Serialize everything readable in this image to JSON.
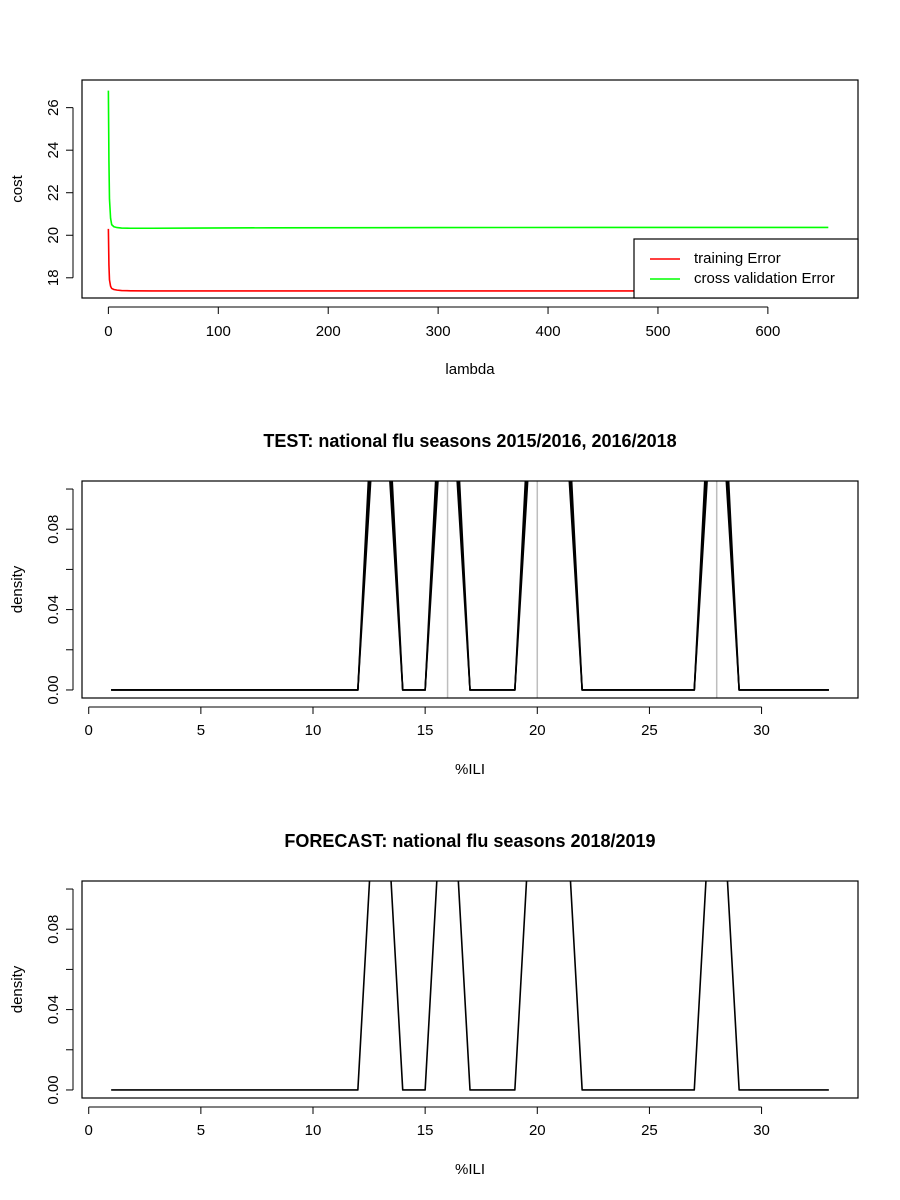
{
  "chart_data": [
    {
      "type": "line",
      "title": "",
      "xlabel": "lambda",
      "ylabel": "cost",
      "xlim": [
        -24,
        682
      ],
      "ylim": [
        17.05,
        27.3
      ],
      "x_ticks": [
        0,
        100,
        200,
        300,
        400,
        500,
        600
      ],
      "x_tick_labels": [
        "0",
        "100",
        "200",
        "300",
        "400",
        "500",
        "600"
      ],
      "y_ticks": [
        18,
        20,
        22,
        24,
        26
      ],
      "y_tick_labels": [
        "18",
        "20",
        "22",
        "24",
        "26"
      ],
      "legend": {
        "placement": "bottom-right",
        "entries": [
          "training Error",
          "cross validation Error"
        ]
      },
      "grid": false,
      "series": [
        {
          "name": "training Error",
          "color": "#ff0000",
          "x": [
            0,
            0.5,
            1,
            2,
            3,
            5,
            8,
            12,
            20,
            40,
            80,
            150,
            300,
            450,
            655
          ],
          "y": [
            20.3,
            18.6,
            17.9,
            17.6,
            17.5,
            17.45,
            17.42,
            17.4,
            17.39,
            17.38,
            17.38,
            17.38,
            17.38,
            17.38,
            17.38
          ]
        },
        {
          "name": "cross validation Error",
          "color": "#00ff00",
          "x": [
            0,
            0.5,
            1,
            2,
            3,
            5,
            8,
            12,
            20,
            40,
            80,
            150,
            300,
            450,
            655
          ],
          "y": [
            26.8,
            23.5,
            21.7,
            20.8,
            20.5,
            20.4,
            20.36,
            20.34,
            20.33,
            20.33,
            20.34,
            20.35,
            20.36,
            20.37,
            20.37
          ]
        }
      ]
    },
    {
      "type": "line",
      "title": "TEST: national flu seasons 2015/2016, 2016/2018",
      "xlabel": "%ILI",
      "ylabel": "density",
      "xlim": [
        -0.3,
        34.3
      ],
      "ylim": [
        -0.004,
        0.104
      ],
      "x_ticks": [
        0,
        5,
        10,
        15,
        20,
        25,
        30
      ],
      "x_tick_labels": [
        "0",
        "5",
        "10",
        "15",
        "20",
        "25",
        "30"
      ],
      "y_ticks": [
        0.0,
        0.02,
        0.04,
        0.06,
        0.08,
        0.1
      ],
      "y_tick_labels": [
        "0.00",
        "",
        "0.04",
        "",
        "0.08",
        ""
      ],
      "grid": false,
      "vlines": {
        "color": "#bebebe",
        "x": [
          16,
          20,
          28
        ]
      },
      "series": [
        {
          "color": "#000000",
          "x": [
            1,
            12,
            13,
            14,
            15,
            16,
            17,
            19,
            20,
            21,
            22,
            27,
            28,
            29,
            33
          ],
          "y": [
            0,
            0,
            0.2,
            0,
            0,
            0.2,
            0,
            0,
            0.2,
            0.2,
            0,
            0,
            0.2,
            0,
            0
          ]
        },
        {
          "color": "#000000",
          "x": [
            1,
            12,
            12.9,
            14,
            15,
            16.1,
            17,
            19,
            20.1,
            21.1,
            22,
            27,
            28.1,
            29,
            33
          ],
          "y": [
            0,
            0,
            0.2,
            0,
            0,
            0.2,
            0,
            0,
            0.2,
            0.2,
            0,
            0,
            0.2,
            0,
            0
          ]
        },
        {
          "color": "#000000",
          "x": [
            1,
            12,
            13.1,
            14,
            15,
            15.9,
            17,
            19,
            19.9,
            20.9,
            22,
            27,
            27.9,
            29,
            33
          ],
          "y": [
            0,
            0,
            0.2,
            0,
            0,
            0.2,
            0,
            0,
            0.2,
            0.2,
            0,
            0,
            0.2,
            0,
            0
          ]
        }
      ]
    },
    {
      "type": "line",
      "title": "FORECAST: national flu seasons 2018/2019",
      "xlabel": "%ILI",
      "ylabel": "density",
      "xlim": [
        -0.3,
        34.3
      ],
      "ylim": [
        -0.004,
        0.104
      ],
      "x_ticks": [
        0,
        5,
        10,
        15,
        20,
        25,
        30
      ],
      "x_tick_labels": [
        "0",
        "5",
        "10",
        "15",
        "20",
        "25",
        "30"
      ],
      "y_ticks": [
        0.0,
        0.02,
        0.04,
        0.06,
        0.08,
        0.1
      ],
      "y_tick_labels": [
        "0.00",
        "",
        "0.04",
        "",
        "0.08",
        ""
      ],
      "grid": false,
      "series": [
        {
          "color": "#000000",
          "x": [
            1,
            12,
            13,
            14,
            15,
            16,
            17,
            19,
            20,
            21,
            22,
            27,
            28,
            29,
            33
          ],
          "y": [
            0,
            0,
            0.2,
            0,
            0,
            0.2,
            0,
            0,
            0.2,
            0.2,
            0,
            0,
            0.2,
            0,
            0
          ]
        }
      ]
    }
  ]
}
